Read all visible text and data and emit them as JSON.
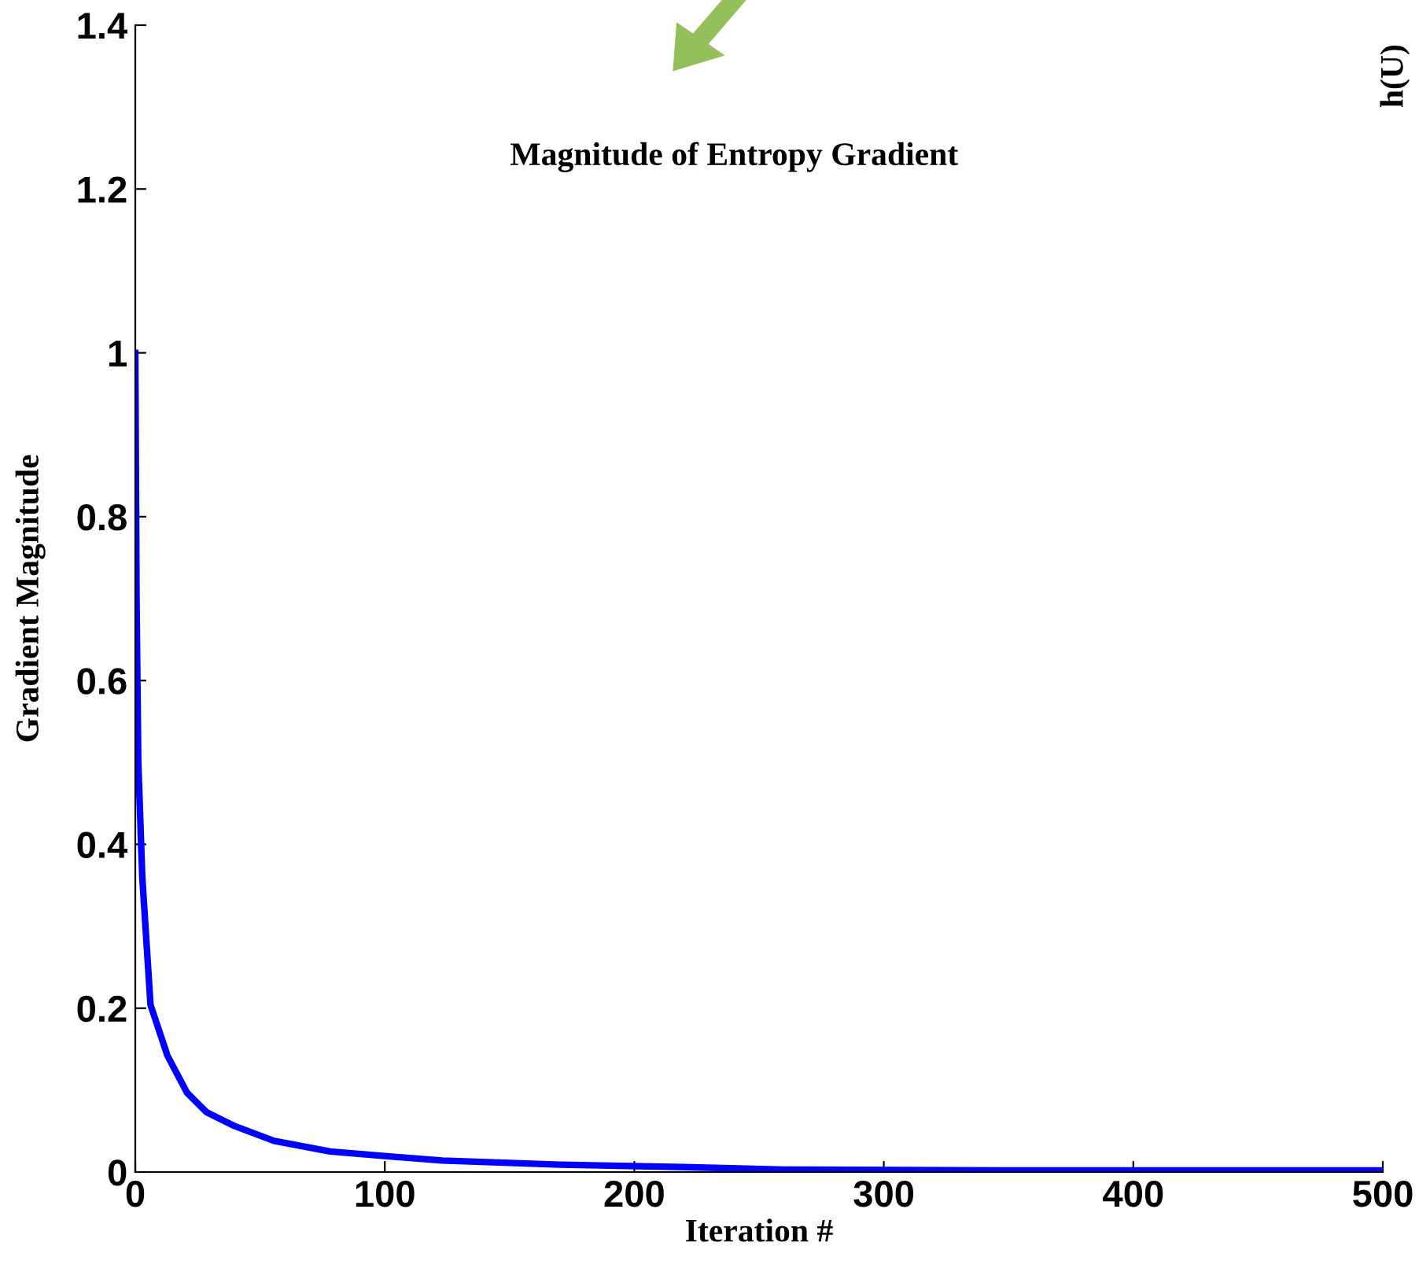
{
  "chart_data": {
    "type": "line",
    "title": "Magnitude of Entropy Gradient",
    "xlabel": "Iteration #",
    "ylabel": "Gradient Magnitude",
    "annotations": [
      "h(U)"
    ],
    "x": [
      0,
      0.5,
      1.2,
      2.8,
      6.1,
      12.9,
      20.7,
      28.6,
      39.9,
      55.6,
      78.1,
      98,
      123,
      170,
      220,
      260,
      350,
      500
    ],
    "series": [
      {
        "color": "#0000ff",
        "values": [
          1.0,
          0.7,
          0.5,
          0.36,
          0.204,
          0.142,
          0.097,
          0.073,
          0.056,
          0.038,
          0.025,
          0.02,
          0.014,
          0.009,
          0.006,
          0.003,
          0.002,
          0.002
        ]
      }
    ],
    "xlim": [
      0,
      500
    ],
    "xticks": [
      0,
      100,
      200,
      300,
      400,
      500
    ],
    "ylim": [
      0,
      1.4
    ],
    "yticks": [
      0,
      0.2,
      0.4,
      0.6,
      0.8,
      1,
      1.2,
      1.4
    ],
    "grid": false,
    "legend": false,
    "marker": "none",
    "line_style": "solid"
  }
}
